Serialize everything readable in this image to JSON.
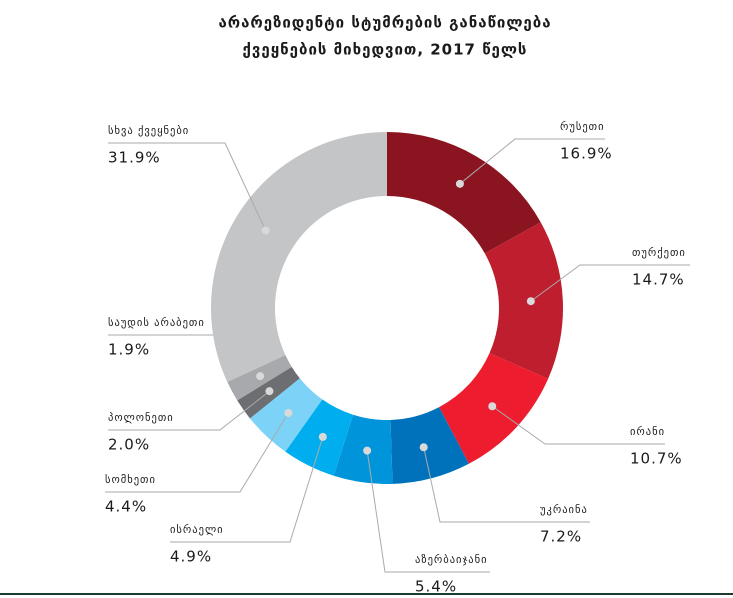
{
  "chart_data": {
    "type": "donut",
    "title": [
      "არარეზიდენტი სტუმრების განაწილება",
      "ქვეყნების მიხედვით, 2017 წელს"
    ],
    "categories": [
      "რუსეთი",
      "თურქეთი",
      "ირანი",
      "უკრაინა",
      "აზერბაიჯანი",
      "ისრაელი",
      "სომხეთი",
      "პოლონეთი",
      "საუდის არაბეთი",
      "სხვა ქვეყნები"
    ],
    "values": [
      16.9,
      14.7,
      10.7,
      7.2,
      5.4,
      4.9,
      4.4,
      2.0,
      1.9,
      31.9
    ],
    "value_labels": [
      "16.9%",
      "14.7%",
      "10.7%",
      "7.2%",
      "5.4%",
      "4.9%",
      "4.4%",
      "2.0%",
      "1.9%",
      "31.9%"
    ],
    "colors": [
      "#8a1420",
      "#be1e2d",
      "#ed1c2e",
      "#0072bc",
      "#0095da",
      "#00aeef",
      "#7dd3f7",
      "#6d6e71",
      "#a7a9ac",
      "#c4c5c7"
    ]
  }
}
